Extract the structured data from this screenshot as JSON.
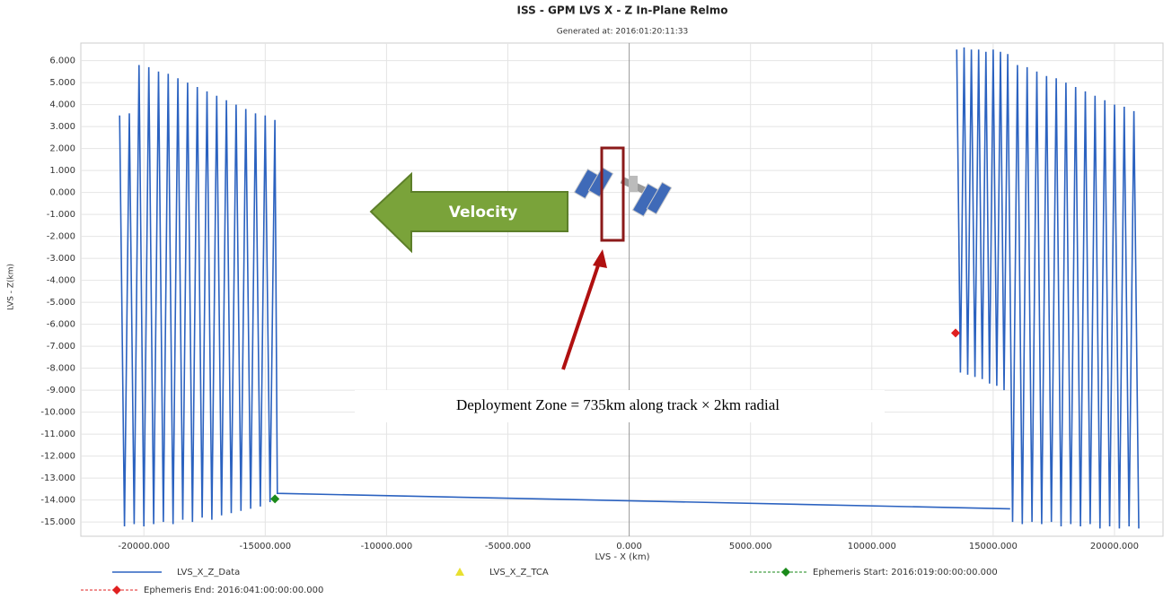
{
  "chart_data": {
    "type": "line",
    "title": "ISS - GPM LVS X - Z In-Plane Relmo",
    "subtitle": "Generated at: 2016:01:20:11:33",
    "x_label": "LVS - X (km)",
    "y_label": "LVS - Z(km)",
    "xlim": [
      -22600,
      22000
    ],
    "ylim": [
      -15.65,
      6.8
    ],
    "xticks": [
      {
        "value": -20000,
        "label": "-20000.000"
      },
      {
        "value": -15000,
        "label": "-15000.000"
      },
      {
        "value": -10000,
        "label": "-10000.000"
      },
      {
        "value": -5000,
        "label": "-5000.000"
      },
      {
        "value": 0,
        "label": "0.000"
      },
      {
        "value": 5000,
        "label": "5000.000"
      },
      {
        "value": 10000,
        "label": "10000.000"
      },
      {
        "value": 15000,
        "label": "15000.000"
      },
      {
        "value": 20000,
        "label": "20000.000"
      }
    ],
    "yticks": [
      {
        "value": 6,
        "label": "6.000"
      },
      {
        "value": 5,
        "label": "5.000"
      },
      {
        "value": 4,
        "label": "4.000"
      },
      {
        "value": 3,
        "label": "3.000"
      },
      {
        "value": 2,
        "label": "2.000"
      },
      {
        "value": 1,
        "label": "1.000"
      },
      {
        "value": 0,
        "label": "0.000"
      },
      {
        "value": -1,
        "label": "-1.000"
      },
      {
        "value": -2,
        "label": "-2.000"
      },
      {
        "value": -3,
        "label": "-3.000"
      },
      {
        "value": -4,
        "label": "-4.000"
      },
      {
        "value": -5,
        "label": "-5.000"
      },
      {
        "value": -6,
        "label": "-6.000"
      },
      {
        "value": -7,
        "label": "-7.000"
      },
      {
        "value": -8,
        "label": "-8.000"
      },
      {
        "value": -9,
        "label": "-9.000"
      },
      {
        "value": -10,
        "label": "-10.000"
      },
      {
        "value": -11,
        "label": "-11.000"
      },
      {
        "value": -12,
        "label": "-12.000"
      },
      {
        "value": -13,
        "label": "-13.000"
      },
      {
        "value": -14,
        "label": "-14.000"
      },
      {
        "value": -15,
        "label": "-15.000"
      }
    ],
    "grid": true,
    "series": [
      {
        "name": "LVS_X_Z_Data",
        "color": "#2b62c0",
        "marker": "line",
        "x": [
          -21000,
          -20800,
          -20600,
          -20400,
          -20200,
          -20000,
          -19800,
          -19600,
          -19400,
          -19200,
          -19000,
          -18800,
          -18600,
          -18400,
          -18200,
          -18000,
          -17800,
          -17600,
          -17400,
          -17200,
          -17000,
          -16800,
          -16600,
          -16400,
          -16200,
          -16000,
          -15800,
          -15600,
          -15400,
          -15200,
          -15000,
          -14800,
          -14600,
          -14500,
          15700,
          15700,
          13500,
          13650,
          13800,
          13950,
          14100,
          14250,
          14400,
          14550,
          14700,
          14850,
          15000,
          15150,
          15300,
          15450,
          15600,
          15800,
          16000,
          16200,
          16400,
          16600,
          16800,
          17000,
          17200,
          17400,
          17600,
          17800,
          18000,
          18200,
          18400,
          18600,
          18800,
          19000,
          19200,
          19400,
          19600,
          19800,
          20000,
          20200,
          20400,
          20600,
          20800,
          21000
        ],
        "values": [
          3.5,
          -15.2,
          3.6,
          -15.1,
          5.8,
          -15.2,
          5.7,
          -15.1,
          5.5,
          -15.0,
          5.4,
          -15.1,
          5.2,
          -14.9,
          5.0,
          -15.0,
          4.8,
          -14.8,
          4.6,
          -14.9,
          4.4,
          -14.7,
          4.2,
          -14.6,
          4.0,
          -14.5,
          3.8,
          -14.4,
          3.6,
          -14.3,
          3.5,
          -14.1,
          3.3,
          -13.7,
          -14.4,
          null,
          6.5,
          -8.2,
          6.6,
          -8.3,
          6.5,
          -8.4,
          6.5,
          -8.5,
          6.4,
          -8.7,
          6.5,
          -8.8,
          6.4,
          -9.0,
          6.3,
          -15.0,
          5.8,
          -15.1,
          5.7,
          -15.0,
          5.5,
          -15.1,
          5.3,
          -15.0,
          5.2,
          -15.2,
          5.0,
          -15.1,
          4.8,
          -15.2,
          4.6,
          -15.1,
          4.4,
          -15.3,
          4.2,
          -15.2,
          4.0,
          -15.3,
          3.9,
          -15.2,
          3.7,
          -15.3
        ]
      },
      {
        "name": "LVS_X_Z_TCA",
        "color": "#e8e030",
        "marker": "triangle",
        "x": [],
        "values": []
      },
      {
        "name": "Ephemeris Start: 2016:019:00:00:00.000",
        "color": "#1a8a1a",
        "marker": "diamond",
        "dashed": true,
        "x": [
          -14600
        ],
        "values": [
          -13.95
        ]
      },
      {
        "name": "Ephemeris End: 2016:041:00:00:00.000",
        "color": "#e02020",
        "marker": "diamond",
        "dashed": true,
        "x": [
          13450
        ],
        "values": [
          -6.4
        ]
      }
    ],
    "annotations": [
      "Velocity",
      "Deployment Zone = 735km along track × 2km radial"
    ]
  }
}
